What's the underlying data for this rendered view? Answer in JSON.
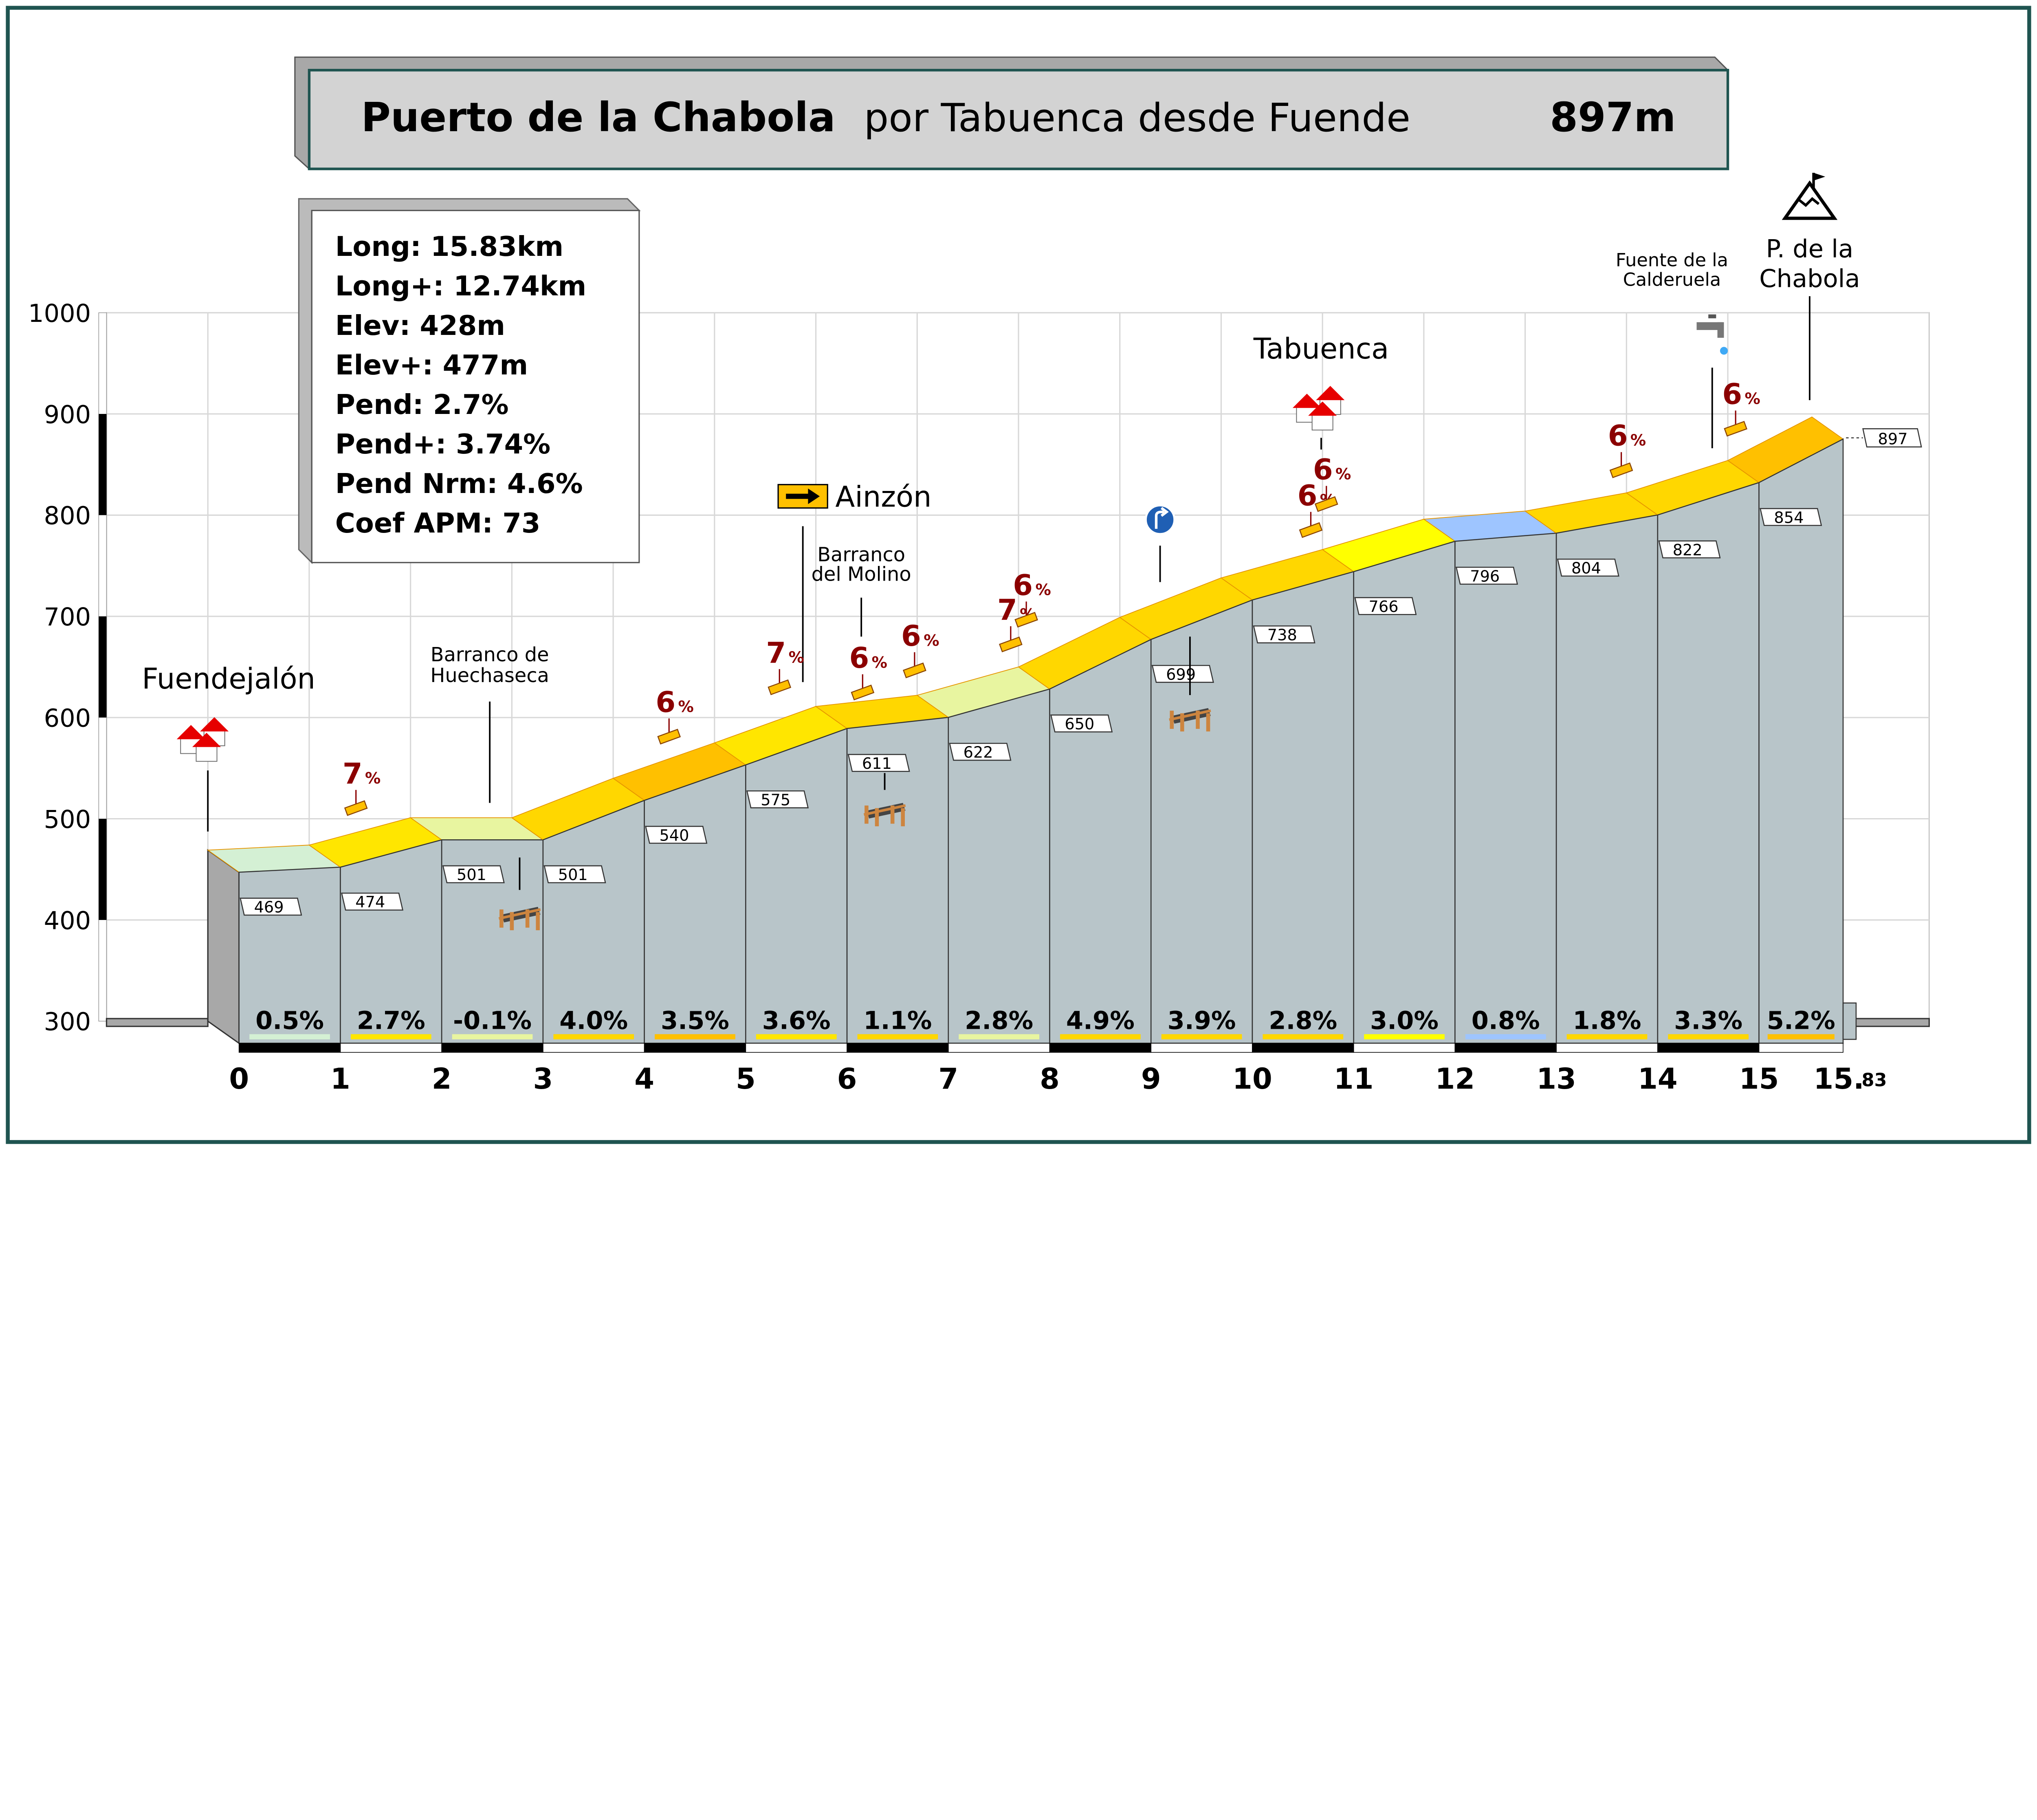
{
  "title": {
    "name": "Puerto de la Chabola",
    "subtitle": "por Tabuenca desde Fuende",
    "altitude": "897m"
  },
  "stats": [
    "Long: 15.83km",
    "Long+: 12.74km",
    "Elev: 428m",
    "Elev+: 477m",
    "Pend: 2.7%",
    "Pend+: 3.74%",
    "Pend Nrm: 4.6%",
    "Coef APM: 73"
  ],
  "places": {
    "start": "Fuendejalón",
    "ravine1": [
      "Barranco de",
      "Huechaseca"
    ],
    "junction": "Ainzón",
    "ravine2": [
      "Barranco",
      "del Molino"
    ],
    "village": "Tabuenca",
    "fountain": [
      "Fuente de la",
      "Calderuela"
    ],
    "summit": [
      "P. de la",
      "Chabola"
    ]
  },
  "gradient_markers": [
    {
      "value": "7",
      "unit": "%"
    },
    {
      "value": "6",
      "unit": "%"
    },
    {
      "value": "7",
      "unit": "%"
    },
    {
      "value": "6",
      "unit": "%"
    },
    {
      "value": "6",
      "unit": "%"
    },
    {
      "value": "7",
      "unit": "%"
    },
    {
      "value": "6",
      "unit": "%"
    },
    {
      "value": "6",
      "unit": "%"
    },
    {
      "value": "6",
      "unit": "%"
    },
    {
      "value": "6",
      "unit": "%"
    },
    {
      "value": "6",
      "unit": "%"
    }
  ],
  "icons": {
    "start": "village-houses-icon",
    "ravine": "bridge-icon",
    "junction": "arrow-sign-icon",
    "turn": "turn-right-sign-icon",
    "village": "village-houses-icon",
    "fountain": "water-tap-icon",
    "summit": "mountain-flag-icon"
  },
  "chart_data": {
    "type": "area",
    "title": "Puerto de la Chabola por Tabuenca desde Fuende 897m",
    "xlabel": "",
    "ylabel": "",
    "xlim": [
      0,
      15.83
    ],
    "ylim": [
      300,
      1000
    ],
    "grid": true,
    "x_ticks": [
      "0",
      "1",
      "2",
      "3",
      "4",
      "5",
      "6",
      "7",
      "8",
      "9",
      "10",
      "11",
      "12",
      "13",
      "14",
      "15"
    ],
    "x_end_label": {
      "main": "15.",
      "sub": "83"
    },
    "y_ticks": [
      "300",
      "400",
      "500",
      "600",
      "700",
      "800",
      "900",
      "1000"
    ],
    "x": [
      0,
      1,
      2,
      3,
      4,
      5,
      6,
      7,
      8,
      9,
      10,
      11,
      12,
      13,
      14,
      15,
      15.83
    ],
    "elevation": [
      469,
      474,
      501,
      501,
      540,
      575,
      611,
      622,
      650,
      699,
      738,
      766,
      796,
      804,
      822,
      854,
      897
    ],
    "elevation_labels": [
      "469",
      "474",
      "501",
      "501",
      "540",
      "575",
      "611",
      "622",
      "650",
      "699",
      "738",
      "766",
      "796",
      "804",
      "822",
      "854",
      "897"
    ],
    "segment_gradients": [
      "0.5%",
      "2.7%",
      "-0.1%",
      "4.0%",
      "3.5%",
      "3.6%",
      "1.1%",
      "2.8%",
      "4.9%",
      "3.9%",
      "2.8%",
      "3.0%",
      "0.8%",
      "1.8%",
      "3.3%",
      "5.2%"
    ],
    "segment_colors": [
      "#d4f0d4",
      "#ffe600",
      "#e8f5a0",
      "#ffd700",
      "#ffc000",
      "#ffe600",
      "#ffd700",
      "#e8f5a0",
      "#ffd700",
      "#ffd700",
      "#ffd700",
      "#ffff00",
      "#9ec5ff",
      "#ffd700",
      "#ffd700",
      "#ffc000"
    ]
  },
  "colors": {
    "frame": "#1f5450",
    "face": "#b8c5c9",
    "marker_red": "#8b0000",
    "title_bg": "#d3d3d3"
  }
}
